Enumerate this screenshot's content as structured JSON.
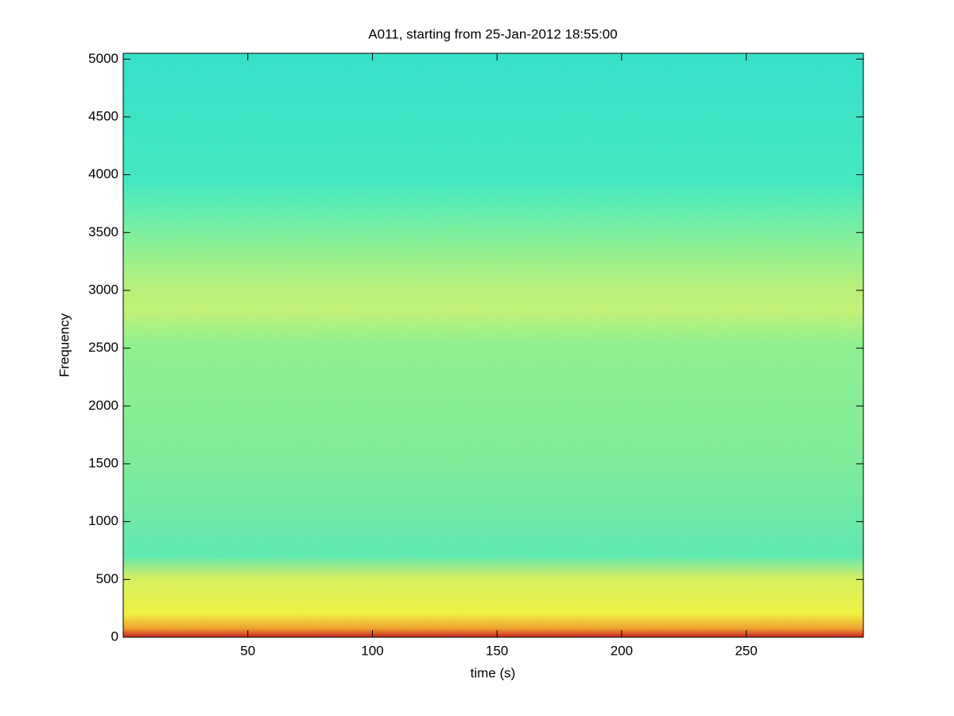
{
  "chart_data": {
    "type": "heatmap",
    "title": "A011, starting from 25-Jan-2012 18:55:00",
    "xlabel": "time (s)",
    "ylabel": "Frequency",
    "xlim": [
      0,
      297
    ],
    "ylim": [
      0,
      5050
    ],
    "xticks": [
      50,
      100,
      150,
      200,
      250
    ],
    "yticks": [
      0,
      500,
      1000,
      1500,
      2000,
      2500,
      3000,
      3500,
      4000,
      4500,
      5000
    ]
  }
}
